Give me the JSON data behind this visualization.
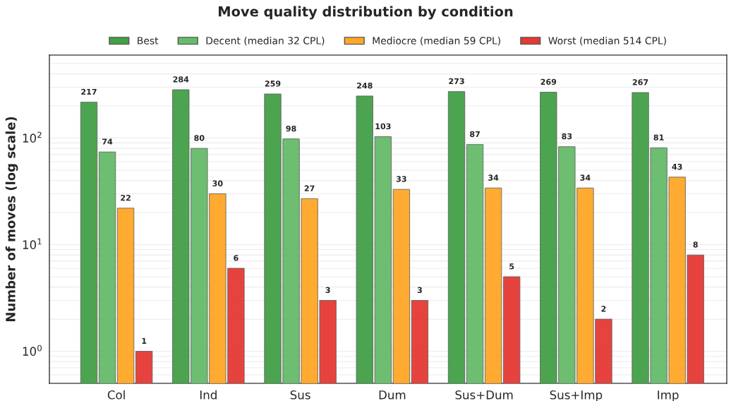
{
  "chart_data": {
    "type": "bar",
    "title": "Move quality distribution by condition",
    "ylabel": "Number of moves (log scale)",
    "categories": [
      "Col",
      "Ind",
      "Sus",
      "Dum",
      "Sus+Dum",
      "Sus+Imp",
      "Imp"
    ],
    "series": [
      {
        "name": "Best",
        "color": "#43a047",
        "values": [
          217,
          284,
          259,
          248,
          273,
          269,
          267
        ]
      },
      {
        "name": "Decent (median 32 CPL)",
        "color": "#66bb6a",
        "values": [
          74,
          80,
          98,
          103,
          87,
          83,
          81
        ]
      },
      {
        "name": "Mediocre (median 59 CPL)",
        "color": "#ffa726",
        "values": [
          22,
          30,
          27,
          33,
          34,
          34,
          43
        ]
      },
      {
        "name": "Worst (median 514 CPL)",
        "color": "#e53935",
        "values": [
          1,
          6,
          3,
          3,
          5,
          2,
          8
        ]
      }
    ],
    "log": true,
    "ylim": [
      0.5,
      600
    ],
    "yticks": [
      {
        "value": 1,
        "label": "10$^{0}$"
      },
      {
        "value": 10,
        "label": "10$^{1}$"
      },
      {
        "value": 100,
        "label": "10$^{2}$"
      }
    ],
    "grid": "y",
    "legend": "top",
    "data_labels": true
  }
}
